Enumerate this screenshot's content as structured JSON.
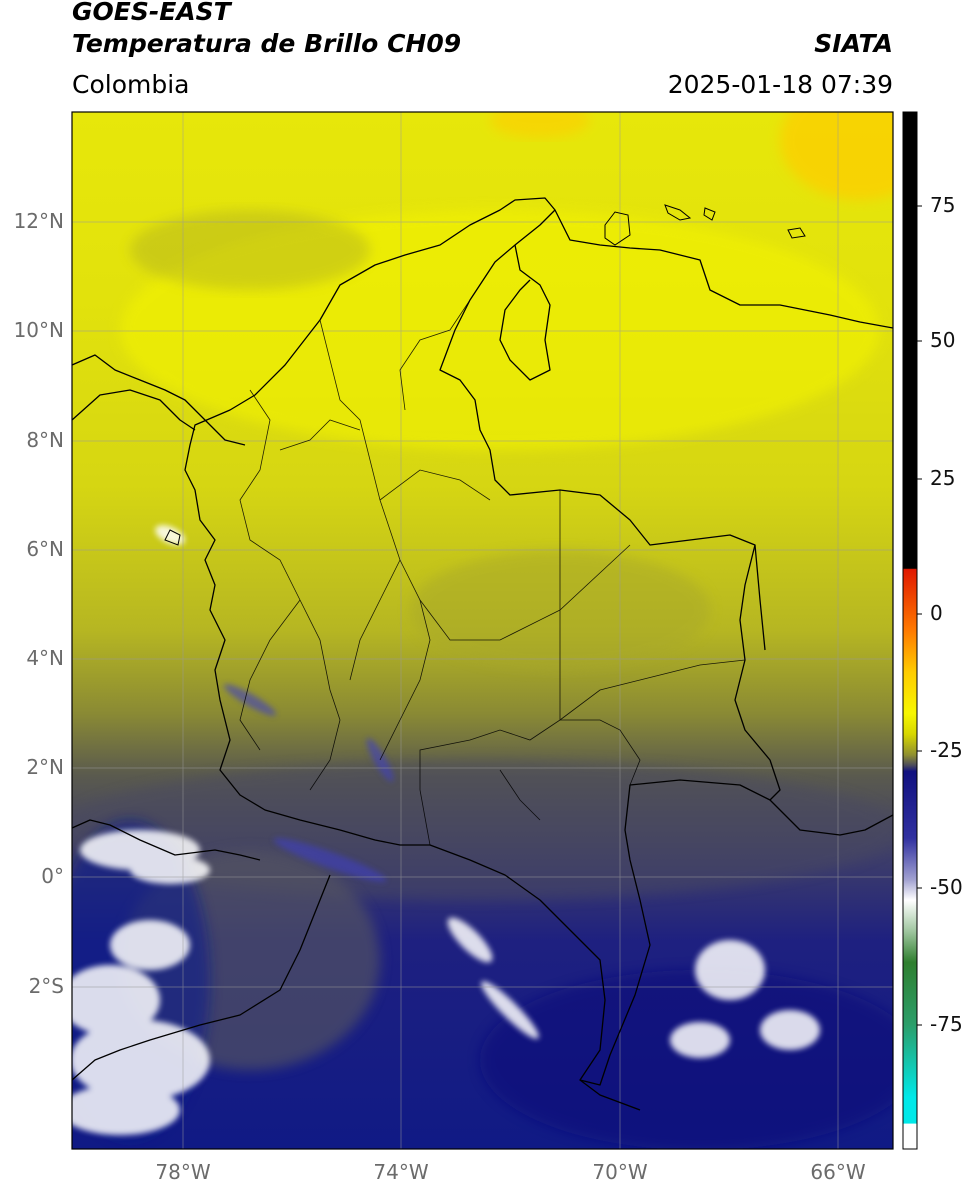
{
  "header": {
    "satellite": "GOES-EAST",
    "product": "Temperatura de Brillo CH09",
    "organization": "SIATA",
    "region": "Colombia",
    "datetime": "2025-01-18 07:39"
  },
  "map": {
    "lon_range": [
      -80,
      -65
    ],
    "lat_range": [
      -5,
      14
    ],
    "lat_ticks": [
      "12°N",
      "10°N",
      "8°N",
      "6°N",
      "4°N",
      "2°N",
      "0°",
      "2°S"
    ],
    "lon_ticks": [
      "78°W",
      "74°W",
      "70°W",
      "66°W"
    ]
  },
  "colorbar": {
    "ticks": [
      "75",
      "50",
      "25",
      "0",
      "-25",
      "-50",
      "-75"
    ],
    "colors": {
      "black": "#000000",
      "red": "#ff2000",
      "orange": "#ff8c00",
      "yellow": "#f7f700",
      "olive": "#8f8f2a",
      "gray": "#4a4a5a",
      "navy": "#101080",
      "white": "#ffffff",
      "green": "#2d7a2d",
      "cyan": "#00e0e0"
    }
  }
}
